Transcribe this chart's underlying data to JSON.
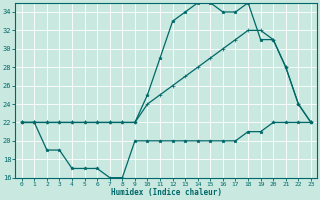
{
  "xlabel": "Humidex (Indice chaleur)",
  "background_color": "#c8e8e0",
  "grid_color": "#ffffff",
  "line_color": "#006868",
  "ylim": [
    16,
    35
  ],
  "xlim": [
    -0.5,
    23.5
  ],
  "yticks": [
    16,
    18,
    20,
    22,
    24,
    26,
    28,
    30,
    32,
    34
  ],
  "xticks": [
    0,
    1,
    2,
    3,
    4,
    5,
    6,
    7,
    8,
    9,
    10,
    11,
    12,
    13,
    14,
    15,
    16,
    17,
    18,
    19,
    20,
    21,
    22,
    23
  ],
  "line1_x": [
    0,
    1,
    2,
    3,
    4,
    5,
    6,
    7,
    8,
    9,
    10,
    11,
    12,
    13,
    14,
    15,
    16,
    17,
    18,
    19,
    20,
    21,
    22,
    23
  ],
  "line1_y": [
    22,
    22,
    22,
    22,
    22,
    22,
    22,
    22,
    22,
    22,
    25,
    29,
    33,
    34,
    35,
    35,
    34,
    34,
    35,
    31,
    31,
    28,
    24,
    22
  ],
  "line2_x": [
    0,
    1,
    2,
    3,
    4,
    5,
    6,
    7,
    8,
    9,
    10,
    11,
    12,
    13,
    14,
    15,
    16,
    17,
    18,
    19,
    20,
    21,
    22,
    23
  ],
  "line2_y": [
    22,
    22,
    22,
    22,
    22,
    22,
    22,
    22,
    22,
    22,
    24,
    25,
    26,
    27,
    28,
    29,
    30,
    31,
    32,
    32,
    31,
    28,
    24,
    22
  ],
  "line3_x": [
    0,
    1,
    2,
    3,
    4,
    5,
    6,
    7,
    8,
    9,
    10,
    11,
    12,
    13,
    14,
    15,
    16,
    17,
    18,
    19,
    20,
    21,
    22,
    23
  ],
  "line3_y": [
    22,
    22,
    19,
    19,
    17,
    17,
    17,
    16,
    16,
    20,
    20,
    20,
    20,
    20,
    20,
    20,
    20,
    20,
    21,
    21,
    22,
    22,
    22,
    22
  ]
}
